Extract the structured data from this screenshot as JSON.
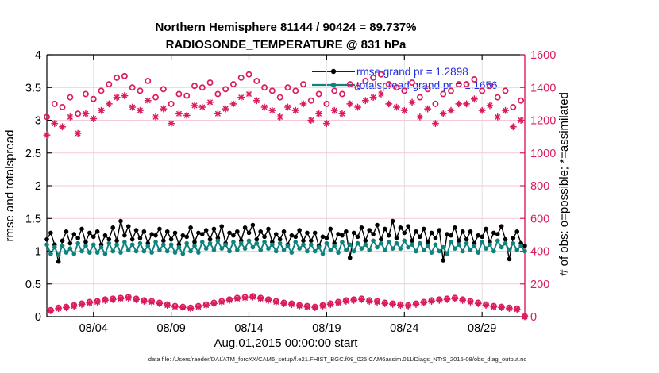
{
  "header": {
    "title_line1": "Northern Hemisphere 81144 / 90424 = 89.737%",
    "title_line2": "RADIOSONDE_TEMPERATURE @ 831 hPa"
  },
  "footer": {
    "data_file_note": "data file: /Users/raeder/DAI/ATM_forcXX/CAM6_setup/f.e21.FHIST_BGC.f09_025.CAM6assim.011/Diags_NTrS_2015-08/obs_diag_output.nc"
  },
  "colors": {
    "rmse": "#000000",
    "totalspread": "#0f827d",
    "obs_counts": "#da1c5e",
    "legend_text": "#1f2ce0",
    "grid_vertical": "#dcdce6",
    "grid_horizontal": "#f6c9d9",
    "axis_black": "#000000",
    "footer_text": "#222222"
  },
  "chart_data": {
    "type": "line",
    "title": "Northern Hemisphere 81144 / 90424 = 89.737% | RADIOSONDE_TEMPERATURE @ 831 hPa",
    "xlabel": "Aug.01,2015 00:00:00 start",
    "ylabel_left": "rmse and totalspread",
    "ylabel_right": "# of obs: o=possible; *=assimilated",
    "xlim_days": [
      1,
      31.75
    ],
    "ylim_left": [
      0,
      4
    ],
    "ylim_right": [
      0,
      1600
    ],
    "grid": "on",
    "legend_position": "upper-center-right, no box",
    "xticks": {
      "values": [
        4,
        9,
        14,
        19,
        24,
        29
      ],
      "labels": [
        "08/04",
        "08/09",
        "08/14",
        "08/19",
        "08/24",
        "08/29"
      ]
    },
    "yticks_left": {
      "values": [
        0,
        0.5,
        1,
        1.5,
        2,
        2.5,
        3,
        3.5,
        4
      ],
      "labels": [
        "0",
        "0.5",
        "1",
        "1.5",
        "2",
        "2.5",
        "3",
        "3.5",
        "4"
      ]
    },
    "yticks_right": {
      "values": [
        0,
        200,
        400,
        600,
        800,
        1000,
        1200,
        1400,
        1600
      ],
      "labels": [
        "0",
        "200",
        "400",
        "600",
        "800",
        "1000",
        "1200",
        "1400",
        "1600"
      ]
    },
    "x_start_day": 1,
    "x_step_days": 0.25,
    "n_points": 124,
    "sampling_note": "4x daily bins (00,06,12,18Z); obs counts are large at 00Z/12Z and near zero at 06Z/18Z",
    "legend": [
      {
        "series": "rmse",
        "label": "rmse grand pr = 1.2898"
      },
      {
        "series": "totalspread",
        "label": "totalspread grand pr = 1.1656"
      }
    ],
    "series": [
      {
        "name": "rmse",
        "axis": "left",
        "line": true,
        "marker": "filled-circle",
        "color_key": "rmse",
        "values": [
          1.18,
          1.28,
          1.1,
          0.84,
          1.16,
          1.3,
          1.12,
          1.26,
          1.2,
          1.34,
          1.14,
          1.28,
          1.22,
          1.3,
          1.1,
          1.24,
          1.18,
          1.36,
          1.16,
          1.46,
          1.24,
          1.38,
          1.18,
          1.32,
          1.2,
          1.3,
          1.12,
          1.26,
          1.24,
          1.34,
          1.16,
          1.3,
          1.18,
          1.28,
          1.1,
          1.24,
          1.22,
          1.36,
          1.14,
          1.28,
          1.26,
          1.32,
          1.18,
          1.34,
          1.2,
          1.38,
          1.12,
          1.28,
          1.24,
          1.3,
          1.16,
          1.36,
          1.28,
          1.4,
          1.18,
          1.3,
          1.22,
          1.34,
          1.14,
          1.26,
          1.18,
          1.3,
          1.1,
          1.24,
          1.22,
          1.32,
          1.16,
          1.28,
          1.16,
          1.28,
          1.08,
          1.22,
          1.2,
          1.34,
          1.12,
          1.26,
          1.24,
          1.3,
          0.9,
          1.28,
          1.22,
          1.36,
          1.16,
          1.32,
          1.26,
          1.4,
          1.18,
          1.34,
          1.24,
          1.46,
          1.2,
          1.36,
          1.28,
          1.38,
          1.16,
          1.3,
          1.22,
          1.34,
          1.14,
          1.28,
          1.2,
          1.32,
          0.86,
          1.26,
          1.24,
          1.36,
          1.16,
          1.3,
          1.18,
          1.3,
          1.12,
          1.24,
          1.22,
          1.34,
          1.14,
          1.28,
          1.26,
          1.38,
          1.18,
          0.88,
          1.2,
          1.3,
          1.12,
          1.08
        ]
      },
      {
        "name": "totalspread",
        "axis": "left",
        "line": true,
        "marker": "filled-circle",
        "color_key": "totalspread",
        "values": [
          1.1,
          0.96,
          1.06,
          0.94,
          1.08,
          0.98,
          1.04,
          0.96,
          1.12,
          1.0,
          1.08,
          0.98,
          1.1,
          0.98,
          1.06,
          0.96,
          1.12,
          1.0,
          1.1,
          0.98,
          1.14,
          1.02,
          1.1,
          1.0,
          1.12,
          1.0,
          1.08,
          0.98,
          1.14,
          1.02,
          1.1,
          1.0,
          1.1,
          0.98,
          1.06,
          0.96,
          1.12,
          1.0,
          1.08,
          0.98,
          1.14,
          1.04,
          1.12,
          1.02,
          1.16,
          1.04,
          1.1,
          1.0,
          1.14,
          1.02,
          1.12,
          1.04,
          1.16,
          1.06,
          1.12,
          1.02,
          1.14,
          1.04,
          1.1,
          1.0,
          1.12,
          1.02,
          1.08,
          0.98,
          1.14,
          1.04,
          1.1,
          1.0,
          1.1,
          1.0,
          1.06,
          0.96,
          1.12,
          1.02,
          1.08,
          0.98,
          1.14,
          1.02,
          1.1,
          1.0,
          1.12,
          1.04,
          1.1,
          1.02,
          1.16,
          1.06,
          1.12,
          1.02,
          1.14,
          1.04,
          1.12,
          1.04,
          1.16,
          1.06,
          1.1,
          1.0,
          1.12,
          1.02,
          1.08,
          0.98,
          1.1,
          1.0,
          1.06,
          0.96,
          1.14,
          1.04,
          1.1,
          1.0,
          1.12,
          1.02,
          1.08,
          0.98,
          1.14,
          1.04,
          1.1,
          1.0,
          1.16,
          1.06,
          1.12,
          1.02,
          1.12,
          1.02,
          1.08,
          1.0
        ]
      },
      {
        "name": "n_possible",
        "axis": "right",
        "line": false,
        "marker": "open-circle",
        "color_key": "obs_counts",
        "values": [
          1220,
          40,
          1300,
          55,
          1280,
          60,
          1340,
          70,
          1240,
          80,
          1360,
          90,
          1330,
          95,
          1380,
          105,
          1420,
          110,
          1460,
          115,
          1470,
          120,
          1400,
          110,
          1380,
          100,
          1440,
          95,
          1340,
          85,
          1390,
          75,
          1300,
          65,
          1360,
          60,
          1350,
          55,
          1410,
          65,
          1400,
          75,
          1430,
          85,
          1360,
          95,
          1390,
          105,
          1420,
          115,
          1460,
          120,
          1480,
          125,
          1440,
          115,
          1400,
          105,
          1380,
          95,
          1340,
          85,
          1400,
          80,
          1380,
          70,
          1420,
          65,
          1320,
          60,
          1360,
          70,
          1300,
          80,
          1380,
          90,
          1360,
          100,
          1420,
          105,
          1400,
          110,
          1440,
          100,
          1460,
          95,
          1480,
          85,
          1420,
          80,
          1400,
          75,
          1380,
          70,
          1430,
          80,
          1340,
          90,
          1390,
          100,
          1300,
          105,
          1360,
          110,
          1380,
          115,
          1420,
          105,
          1420,
          95,
          1450,
          85,
          1380,
          75,
          1410,
          65,
          1340,
          60,
          1380,
          55,
          1280,
          50,
          1320,
          2
        ]
      },
      {
        "name": "n_assimilated",
        "axis": "right",
        "line": false,
        "marker": "asterisk",
        "color_key": "obs_counts",
        "values": [
          1110,
          36,
          1180,
          50,
          1160,
          55,
          1220,
          65,
          1120,
          75,
          1240,
          84,
          1210,
          90,
          1260,
          100,
          1300,
          105,
          1340,
          110,
          1350,
          114,
          1280,
          105,
          1260,
          95,
          1320,
          90,
          1220,
          80,
          1270,
          70,
          1180,
          60,
          1240,
          56,
          1230,
          50,
          1290,
          60,
          1280,
          70,
          1310,
          80,
          1240,
          90,
          1270,
          100,
          1300,
          110,
          1340,
          114,
          1360,
          120,
          1320,
          110,
          1280,
          100,
          1260,
          90,
          1220,
          80,
          1280,
          75,
          1260,
          66,
          1300,
          60,
          1200,
          56,
          1240,
          66,
          1180,
          75,
          1260,
          85,
          1240,
          95,
          1300,
          100,
          1280,
          105,
          1320,
          95,
          1340,
          90,
          1360,
          80,
          1300,
          76,
          1280,
          70,
          1260,
          66,
          1310,
          75,
          1220,
          85,
          1270,
          95,
          1180,
          100,
          1240,
          105,
          1260,
          110,
          1300,
          100,
          1300,
          90,
          1330,
          80,
          1260,
          70,
          1290,
          60,
          1220,
          56,
          1260,
          50,
          1160,
          45,
          1200,
          0
        ]
      }
    ]
  }
}
